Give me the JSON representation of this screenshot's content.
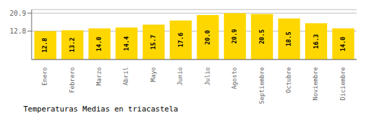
{
  "chart_data": {
    "type": "bar",
    "title": "Temperaturas Medias en triacastela",
    "categories": [
      "Enero",
      "Febrero",
      "Marzo",
      "Abril",
      "Mayo",
      "Junio",
      "Julio",
      "Agosto",
      "Septiembre",
      "Octubre",
      "Noviembre",
      "Diciembre"
    ],
    "values": [
      12.8,
      13.2,
      14.0,
      14.4,
      15.7,
      17.6,
      20.0,
      20.9,
      20.5,
      18.5,
      16.3,
      14.0
    ],
    "value_labels": [
      "12.8",
      "13.2",
      "14.0",
      "14.4",
      "15.7",
      "17.6",
      "20.0",
      "20.9",
      "20.5",
      "18.5",
      "16.3",
      "14.0"
    ],
    "data_labels": true,
    "color": "#FFD700",
    "ylim": [
      0,
      22.5
    ],
    "yticks": [
      12.8,
      20.9
    ],
    "grid": true
  }
}
